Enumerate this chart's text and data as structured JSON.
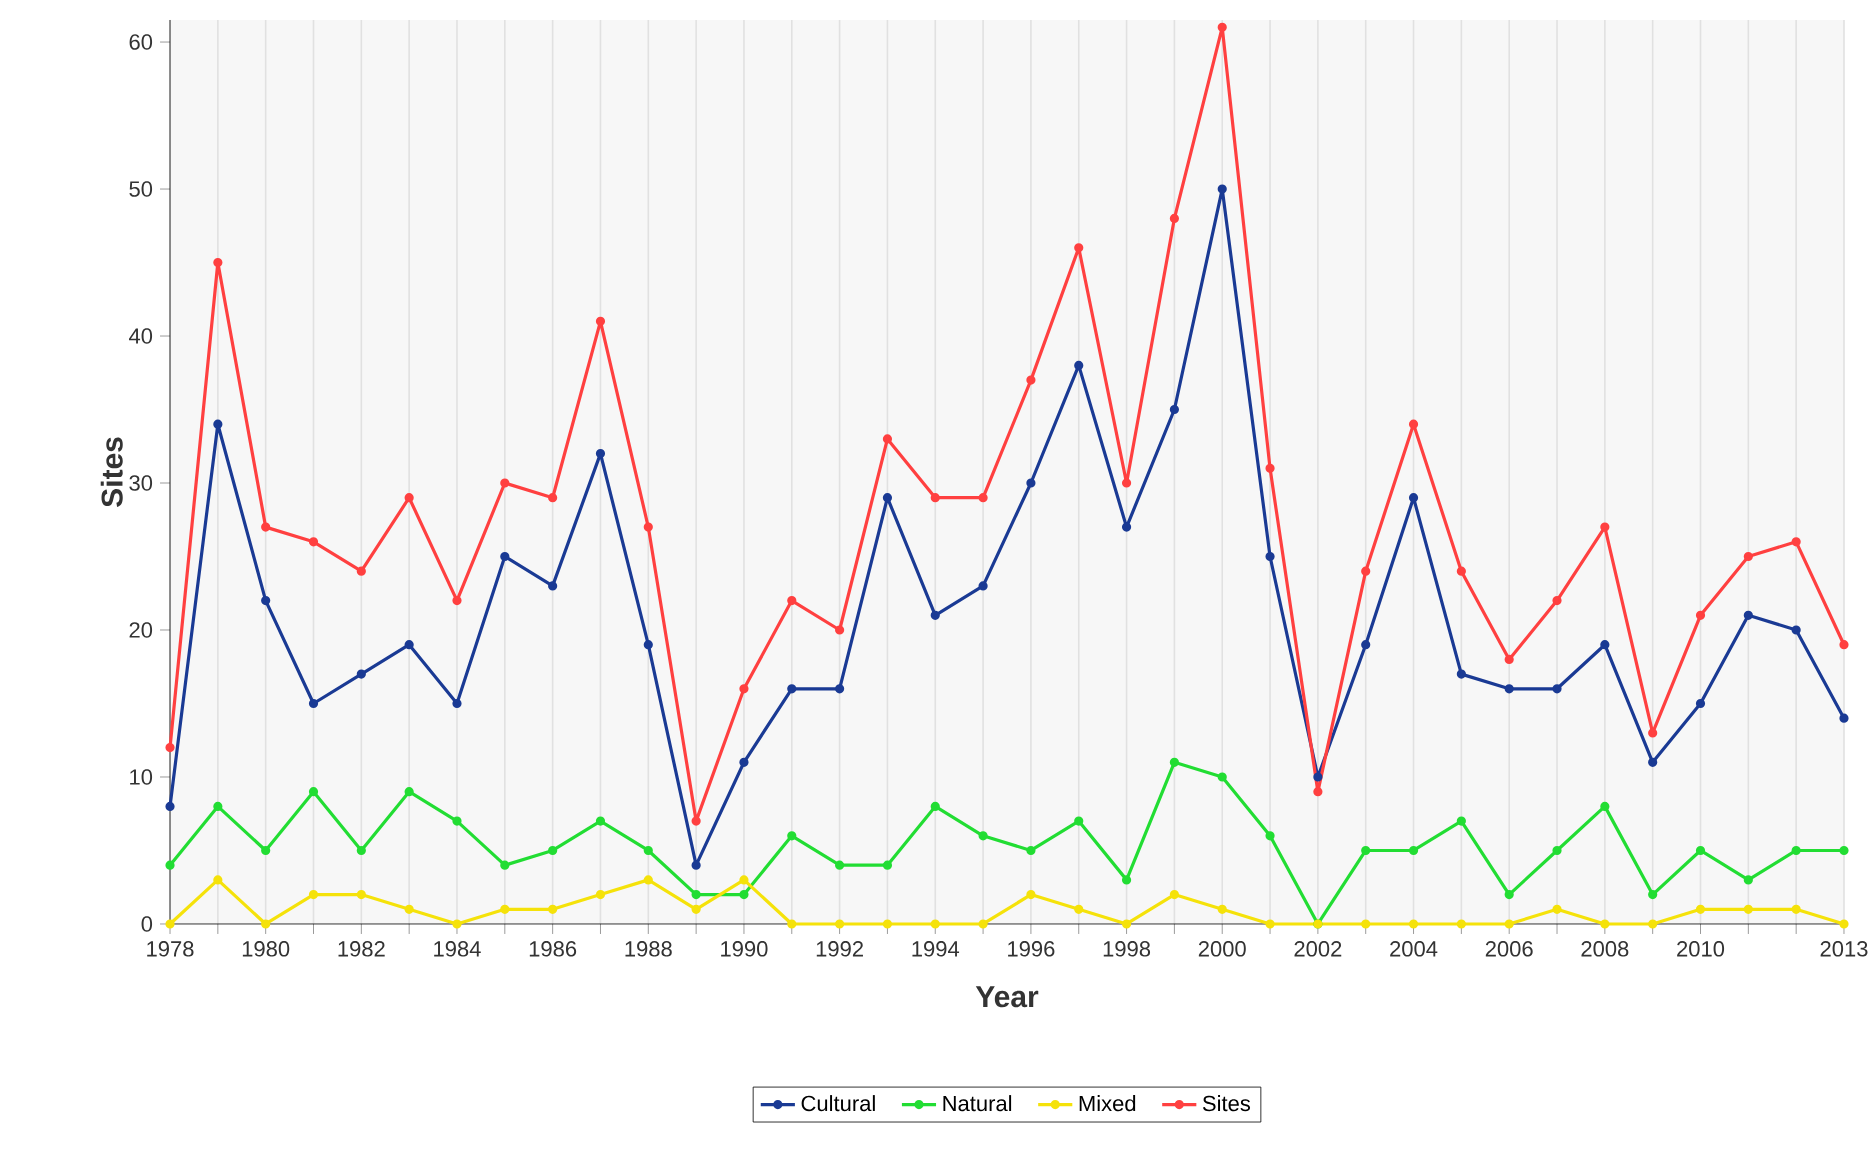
{
  "chart_data": {
    "type": "line",
    "xlabel": "Year",
    "ylabel": "Sites",
    "x": [
      1978,
      1979,
      1980,
      1981,
      1982,
      1983,
      1984,
      1985,
      1986,
      1987,
      1988,
      1989,
      1990,
      1991,
      1992,
      1993,
      1994,
      1995,
      1996,
      1997,
      1998,
      1999,
      2000,
      2001,
      2002,
      2003,
      2004,
      2005,
      2006,
      2007,
      2008,
      2009,
      2010,
      2011,
      2012,
      2013
    ],
    "series": [
      {
        "name": "Cultural",
        "color": "#1a3a94",
        "values": [
          8,
          34,
          22,
          15,
          17,
          19,
          15,
          25,
          23,
          32,
          19,
          4,
          11,
          16,
          16,
          29,
          21,
          23,
          30,
          38,
          27,
          35,
          50,
          25,
          10,
          19,
          29,
          17,
          16,
          16,
          19,
          11,
          15,
          21,
          20,
          14
        ]
      },
      {
        "name": "Natural",
        "color": "#22dd33",
        "values": [
          4,
          8,
          5,
          9,
          5,
          9,
          7,
          4,
          5,
          7,
          5,
          2,
          2,
          6,
          4,
          4,
          8,
          6,
          5,
          7,
          3,
          11,
          10,
          6,
          0,
          5,
          5,
          7,
          2,
          5,
          8,
          2,
          5,
          3,
          5,
          5
        ]
      },
      {
        "name": "Mixed",
        "color": "#f5e20a",
        "values": [
          0,
          3,
          0,
          2,
          2,
          1,
          0,
          1,
          1,
          2,
          3,
          1,
          3,
          0,
          0,
          0,
          0,
          0,
          2,
          1,
          0,
          2,
          1,
          0,
          0,
          0,
          0,
          0,
          0,
          1,
          0,
          0,
          1,
          1,
          1,
          0
        ]
      },
      {
        "name": "Sites",
        "color": "#ff4040",
        "values": [
          12,
          45,
          27,
          26,
          24,
          29,
          22,
          30,
          29,
          41,
          27,
          7,
          16,
          22,
          20,
          33,
          29,
          29,
          37,
          46,
          30,
          48,
          61,
          31,
          9,
          24,
          34,
          24,
          18,
          22,
          27,
          13,
          21,
          25,
          26,
          19
        ]
      }
    ],
    "xlim": [
      1978,
      2013
    ],
    "ylim": [
      0,
      61.5
    ],
    "xticks": [
      1978,
      {
        "value": 1979,
        "label": null
      },
      1980,
      {
        "value": 1981,
        "label": null
      },
      1982,
      {
        "value": 1983,
        "label": null
      },
      1984,
      {
        "value": 1985,
        "label": null
      },
      1986,
      {
        "value": 1987,
        "label": null
      },
      1988,
      {
        "value": 1989,
        "label": null
      },
      1990,
      {
        "value": 1991,
        "label": null
      },
      1992,
      {
        "value": 1993,
        "label": null
      },
      1994,
      {
        "value": 1995,
        "label": null
      },
      1996,
      {
        "value": 1997,
        "label": null
      },
      1998,
      {
        "value": 1999,
        "label": null
      },
      2000,
      {
        "value": 2001,
        "label": null
      },
      2002,
      {
        "value": 2003,
        "label": null
      },
      2004,
      {
        "value": 2005,
        "label": null
      },
      2006,
      {
        "value": 2007,
        "label": null
      },
      2008,
      {
        "value": 2009,
        "label": null
      },
      2010,
      {
        "value": 2011,
        "label": null
      },
      {
        "value": 2012,
        "label": null
      },
      2013
    ],
    "yticks": [
      0,
      10,
      20,
      30,
      40,
      50,
      60
    ],
    "grid": "x",
    "legend": "bottom",
    "marker": "circle",
    "line_style": "solid"
  }
}
